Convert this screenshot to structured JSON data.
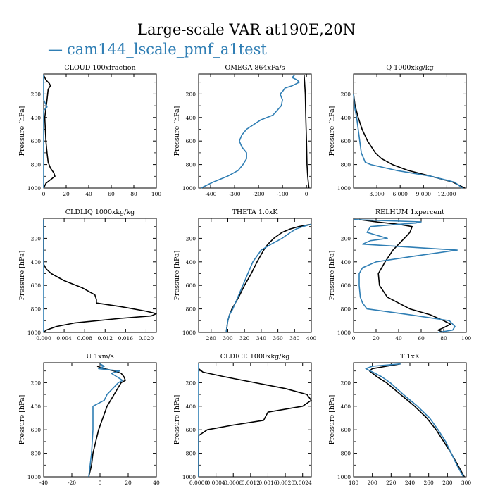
{
  "title": "Large-scale VAR at190E,20N",
  "legend": {
    "dash": "—",
    "label": "cam144_lscale_pmf_a1test",
    "color": "#2f7eb4"
  },
  "colors": {
    "black": "#000000",
    "blue": "#2f7eb4"
  },
  "chart_data": [
    {
      "type": "line",
      "title": "CLOUD 100xfraction",
      "xlim": [
        0,
        100
      ],
      "xticks": [
        0,
        20,
        40,
        60,
        80,
        100
      ],
      "xticklabels": [
        "0",
        "20",
        "40",
        "60",
        "80",
        "100"
      ],
      "ylabel": "Pressure [hPa]",
      "ylim": [
        1000,
        30
      ],
      "yticks": [
        200,
        400,
        600,
        800,
        1000
      ],
      "yticklabels": [
        "200",
        "400",
        "600",
        "800",
        "1000"
      ],
      "series": [
        {
          "name": "black",
          "p": [
            40,
            80,
            110,
            130,
            160,
            250,
            400,
            600,
            700,
            780,
            830,
            870,
            900,
            930,
            960,
            1000
          ],
          "x": [
            0,
            2,
            5,
            6,
            4,
            3,
            1,
            2,
            3,
            4,
            6,
            9,
            10,
            6,
            2,
            0
          ]
        },
        {
          "name": "blue",
          "p": [
            40,
            250,
            290,
            310,
            340,
            1000
          ],
          "x": [
            0,
            0,
            2,
            3,
            0,
            0
          ]
        }
      ]
    },
    {
      "type": "line",
      "title": "OMEGA 864xPa/s",
      "xlim": [
        -450,
        20
      ],
      "xticks": [
        -400,
        -300,
        -200,
        -100,
        0
      ],
      "xticklabels": [
        "-400",
        "-300",
        "-200",
        "-100",
        "0"
      ],
      "ylabel": "Pressure [hPa]",
      "ylim": [
        1000,
        30
      ],
      "yticks": [
        200,
        400,
        600,
        800,
        1000
      ],
      "yticklabels": [
        "200",
        "400",
        "600",
        "800",
        "1000"
      ],
      "series": [
        {
          "name": "black",
          "p": [
            40,
            100,
            200,
            400,
            600,
            800,
            900,
            1000
          ],
          "x": [
            -10,
            -8,
            -5,
            -3,
            0,
            2,
            5,
            10
          ]
        },
        {
          "name": "blue",
          "p": [
            40,
            60,
            80,
            100,
            130,
            150,
            180,
            200,
            250,
            300,
            380,
            420,
            500,
            550,
            600,
            650,
            700,
            750,
            800,
            850,
            900,
            950,
            1000
          ],
          "x": [
            -50,
            -60,
            -40,
            -30,
            -60,
            -90,
            -100,
            -110,
            -100,
            -105,
            -140,
            -190,
            -250,
            -270,
            -280,
            -270,
            -250,
            -250,
            -265,
            -285,
            -330,
            -390,
            -440
          ]
        }
      ]
    },
    {
      "type": "line",
      "title": "Q  1000xkg/kg",
      "xlim": [
        0,
        14.5
      ],
      "xticks": [
        3,
        6,
        9,
        12
      ],
      "xticklabels": [
        "3.000",
        "6.000",
        "9.000",
        "12.000"
      ],
      "ylabel": "Pressure [hPa]",
      "ylim": [
        1000,
        30
      ],
      "yticks": [
        200,
        400,
        600,
        800,
        1000
      ],
      "yticklabels": [
        "200",
        "400",
        "600",
        "800",
        "1000"
      ],
      "series": [
        {
          "name": "black",
          "p": [
            200,
            300,
            400,
            500,
            600,
            700,
            750,
            800,
            850,
            900,
            950,
            1000
          ],
          "x": [
            0,
            0.2,
            0.6,
            1.1,
            1.8,
            2.8,
            3.6,
            5.0,
            7.0,
            10.0,
            12.8,
            14.3
          ]
        },
        {
          "name": "blue",
          "p": [
            200,
            300,
            400,
            500,
            600,
            700,
            780,
            800,
            850,
            900,
            950,
            1000
          ],
          "x": [
            0,
            0.1,
            0.4,
            0.6,
            0.8,
            1.0,
            1.5,
            2.2,
            5.5,
            10.0,
            13.0,
            14.0
          ]
        }
      ]
    },
    {
      "type": "line",
      "title": "CLDLIQ  1000xkg/kg",
      "xlim": [
        0,
        0.022
      ],
      "xticks": [
        0,
        0.004,
        0.008,
        0.012,
        0.016,
        0.02
      ],
      "xticklabels": [
        "0.000",
        "0.004",
        "0.008",
        "0.012",
        "0.016",
        "0.020"
      ],
      "ylabel": "Pressure [hPa]",
      "ylim": [
        1000,
        30
      ],
      "yticks": [
        200,
        400,
        600,
        800,
        1000
      ],
      "yticklabels": [
        "200",
        "400",
        "600",
        "800",
        "1000"
      ],
      "series": [
        {
          "name": "black",
          "p": [
            40,
            420,
            460,
            500,
            560,
            620,
            680,
            720,
            750,
            780,
            820,
            840,
            860,
            880,
            920,
            950,
            980,
            1000
          ],
          "x": [
            0,
            0,
            0.0005,
            0.0015,
            0.004,
            0.0075,
            0.01,
            0.0103,
            0.0103,
            0.015,
            0.02,
            0.022,
            0.021,
            0.015,
            0.006,
            0.0025,
            0.0005,
            0
          ]
        },
        {
          "name": "blue",
          "p": [
            40,
            1000
          ],
          "x": [
            0,
            0
          ]
        }
      ]
    },
    {
      "type": "line",
      "title": "THETA  1.0xK",
      "xlim": [
        265,
        400
      ],
      "xticks": [
        280,
        300,
        320,
        340,
        360,
        380,
        400
      ],
      "xticklabels": [
        "280",
        "300",
        "320",
        "340",
        "360",
        "380",
        "400"
      ],
      "ylabel": "Pressure [hPa]",
      "ylim": [
        1000,
        30
      ],
      "yticks": [
        200,
        400,
        600,
        800,
        1000
      ],
      "yticklabels": [
        "200",
        "400",
        "600",
        "800",
        "1000"
      ],
      "series": [
        {
          "name": "black",
          "p": [
            1000,
            950,
            900,
            850,
            800,
            700,
            600,
            500,
            400,
            300,
            250,
            200,
            150,
            120,
            100,
            80
          ],
          "x": [
            298,
            299,
            300,
            302,
            305,
            313,
            320,
            328,
            335,
            343,
            348,
            355,
            365,
            375,
            385,
            400
          ]
        },
        {
          "name": "blue",
          "p": [
            1000,
            950,
            900,
            850,
            800,
            700,
            600,
            500,
            400,
            300,
            250,
            200,
            150,
            120,
            100,
            80
          ],
          "x": [
            298,
            299,
            300,
            302,
            306,
            312,
            318,
            324,
            330,
            340,
            352,
            365,
            375,
            382,
            390,
            400
          ]
        }
      ]
    },
    {
      "type": "line",
      "title": "RELHUM  1xpercent",
      "xlim": [
        0,
        100
      ],
      "xticks": [
        0,
        20,
        40,
        60,
        80,
        100
      ],
      "xticklabels": [
        "0",
        "20",
        "40",
        "60",
        "80",
        "100"
      ],
      "ylabel": "Pressure [hPa]",
      "ylim": [
        1000,
        30
      ],
      "yticks": [
        200,
        400,
        600,
        800,
        1000
      ],
      "yticklabels": [
        "200",
        "400",
        "600",
        "800",
        "1000"
      ],
      "series": [
        {
          "name": "black",
          "p": [
            40,
            60,
            80,
            100,
            150,
            200,
            300,
            400,
            500,
            600,
            700,
            800,
            850,
            900,
            930,
            960,
            980,
            1000
          ],
          "x": [
            5,
            20,
            40,
            52,
            50,
            45,
            35,
            28,
            22,
            23,
            30,
            50,
            68,
            80,
            86,
            80,
            75,
            80
          ]
        },
        {
          "name": "blue",
          "p": [
            40,
            60,
            70,
            80,
            100,
            150,
            200,
            220,
            250,
            300,
            350,
            400,
            450,
            500,
            600,
            700,
            750,
            800,
            850,
            900,
            950,
            980,
            1000
          ],
          "x": [
            0,
            60,
            55,
            40,
            15,
            12,
            30,
            15,
            8,
            92,
            55,
            20,
            8,
            5,
            5,
            6,
            8,
            12,
            50,
            85,
            90,
            88,
            75
          ]
        }
      ]
    },
    {
      "type": "line",
      "title": "U  1xm/s",
      "xlim": [
        -40,
        40
      ],
      "xticks": [
        -40,
        -20,
        0,
        20,
        40
      ],
      "xticklabels": [
        "-40",
        "-20",
        "0",
        "20",
        "40"
      ],
      "ylabel": "Pressure [hPa]",
      "ylim": [
        1000,
        30
      ],
      "yticks": [
        200,
        400,
        600,
        800,
        1000
      ],
      "yticklabels": [
        "200",
        "400",
        "600",
        "800",
        "1000"
      ],
      "series": [
        {
          "name": "black",
          "p": [
            60,
            80,
            100,
            120,
            150,
            180,
            200,
            300,
            400,
            600,
            800,
            900,
            1000
          ],
          "x": [
            -2,
            3,
            10,
            15,
            17,
            18,
            15,
            10,
            5,
            -1,
            -5,
            -6,
            -8
          ]
        },
        {
          "name": "blue",
          "p": [
            40,
            60,
            80,
            100,
            120,
            150,
            180,
            200,
            300,
            350,
            400,
            600,
            800,
            900,
            1000
          ],
          "x": [
            0,
            3,
            -1,
            14,
            8,
            12,
            16,
            13,
            5,
            3,
            -5,
            -5,
            -6,
            -7,
            -8
          ]
        }
      ]
    },
    {
      "type": "line",
      "title": "CLDICE  1000xkg/kg",
      "xlim": [
        0,
        0.0026
      ],
      "xticks": [
        0,
        0.0004,
        0.0008,
        0.0012,
        0.0016,
        0.002,
        0.0024
      ],
      "xticklabels": [
        "0.0000",
        "0.0004",
        "0.0008",
        "0.0012",
        "0.0016",
        "0.0020",
        "0.0024"
      ],
      "ylabel": "Pressure [hPa]",
      "ylim": [
        1000,
        30
      ],
      "yticks": [
        200,
        400,
        600,
        800,
        1000
      ],
      "yticklabels": [
        "200",
        "400",
        "600",
        "800",
        "1000"
      ],
      "series": [
        {
          "name": "black",
          "p": [
            80,
            110,
            150,
            200,
            250,
            300,
            350,
            400,
            450,
            520,
            560,
            600,
            650,
            700,
            1000
          ],
          "x": [
            0,
            0.0001,
            0.0006,
            0.0013,
            0.002,
            0.0025,
            0.0026,
            0.0024,
            0.0016,
            0.0015,
            0.0008,
            0.0002,
            0,
            0,
            0
          ]
        },
        {
          "name": "blue",
          "p": [
            40,
            1000
          ],
          "x": [
            0,
            0
          ]
        }
      ]
    },
    {
      "type": "line",
      "title": "T  1xK",
      "xlim": [
        180,
        300
      ],
      "xticks": [
        180,
        200,
        220,
        240,
        260,
        280,
        300
      ],
      "xticklabels": [
        "180",
        "200",
        "220",
        "240",
        "260",
        "280",
        "300"
      ],
      "ylabel": "Pressure [hPa]",
      "ylim": [
        1000,
        30
      ],
      "yticks": [
        200,
        400,
        600,
        800,
        1000
      ],
      "yticklabels": [
        "200",
        "400",
        "600",
        "800",
        "1000"
      ],
      "series": [
        {
          "name": "black",
          "p": [
            40,
            60,
            80,
            100,
            150,
            200,
            300,
            400,
            500,
            600,
            700,
            800,
            900,
            1000
          ],
          "x": [
            230,
            215,
            200,
            197,
            205,
            215,
            230,
            245,
            258,
            268,
            276,
            284,
            291,
            298
          ]
        },
        {
          "name": "blue",
          "p": [
            40,
            60,
            80,
            100,
            150,
            200,
            300,
            400,
            500,
            600,
            700,
            800,
            900,
            1000
          ],
          "x": [
            230,
            200,
            193,
            198,
            210,
            219,
            233,
            248,
            261,
            270,
            278,
            284,
            290,
            297
          ]
        }
      ]
    }
  ]
}
